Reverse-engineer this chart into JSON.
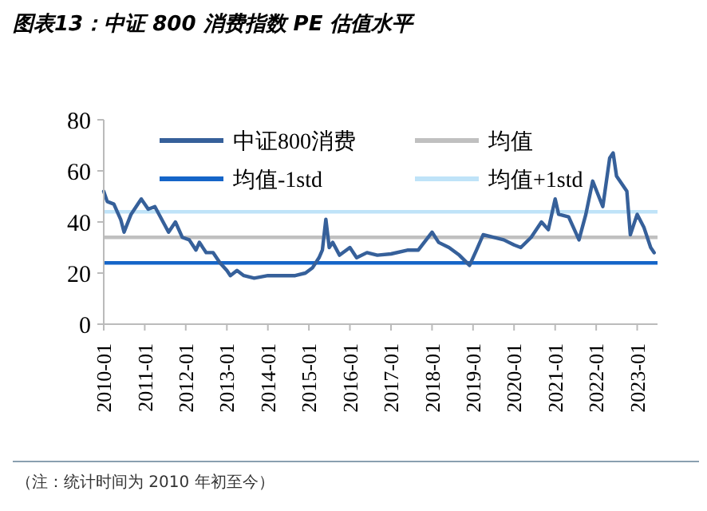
{
  "chart_data": {
    "type": "line",
    "title": "图表13：中证 800 消费指数 PE 估值水平",
    "annotations": [
      "（注：统计时间为 2010 年初至今）"
    ],
    "series": [
      {
        "name": "中证800消费",
        "color": "#36609a",
        "x": [
          "2010-01",
          "2010-02",
          "2010-04",
          "2010-06",
          "2010-07",
          "2010-09",
          "2010-11",
          "2010-12",
          "2011-02",
          "2011-04",
          "2011-06",
          "2011-08",
          "2011-10",
          "2011-12",
          "2012-02",
          "2012-04",
          "2012-05",
          "2012-07",
          "2012-09",
          "2012-11",
          "2013-01",
          "2013-02",
          "2013-04",
          "2013-06",
          "2013-09",
          "2014-01",
          "2014-06",
          "2014-09",
          "2014-12",
          "2015-02",
          "2015-04",
          "2015-05",
          "2015-06",
          "2015-07",
          "2015-08",
          "2015-10",
          "2016-01",
          "2016-03",
          "2016-06",
          "2016-09",
          "2017-01",
          "2017-06",
          "2017-09",
          "2018-01",
          "2018-03",
          "2018-06",
          "2018-09",
          "2018-12",
          "2019-02",
          "2019-04",
          "2019-07",
          "2019-10",
          "2020-01",
          "2020-03",
          "2020-06",
          "2020-09",
          "2020-11",
          "2021-01",
          "2021-02",
          "2021-05",
          "2021-08",
          "2021-10",
          "2021-12",
          "2022-03",
          "2022-05",
          "2022-06",
          "2022-07",
          "2022-10",
          "2022-11",
          "2023-01",
          "2023-03",
          "2023-05",
          "2023-06"
        ],
        "values": [
          52,
          48,
          47,
          41,
          36,
          43,
          47,
          49,
          45,
          46,
          41,
          36,
          40,
          34,
          33,
          29,
          32,
          28,
          28,
          24,
          21,
          19,
          21,
          19,
          18,
          19,
          19,
          19,
          20,
          22,
          26,
          29,
          41,
          30,
          32,
          27,
          30,
          26,
          28,
          27,
          27.5,
          29,
          29,
          36,
          32,
          30,
          27,
          23,
          29,
          35,
          34,
          33,
          31,
          30,
          34,
          40,
          37,
          49,
          43,
          42,
          33,
          43,
          56,
          46,
          65,
          67,
          58,
          52,
          35,
          43,
          38,
          30,
          28
        ]
      }
    ],
    "ref_lines": [
      {
        "axis": "y",
        "value": 34,
        "label": "均值",
        "color": "#c0c0c0"
      },
      {
        "axis": "y",
        "value": 24,
        "label": "均值-1std",
        "color": "#1565c8"
      },
      {
        "axis": "y",
        "value": 44,
        "label": "均值+1std",
        "color": "#bfe3f8"
      }
    ],
    "xlim": [
      "2010-01",
      "2023-07"
    ],
    "xticks": [
      "2010-01",
      "2011-01",
      "2012-01",
      "2013-01",
      "2014-01",
      "2015-01",
      "2016-01",
      "2017-01",
      "2018-01",
      "2019-01",
      "2020-01",
      "2021-01",
      "2022-01",
      "2023-01"
    ],
    "ylim": [
      0,
      80
    ],
    "yticks": [
      0,
      20,
      40,
      60,
      80
    ],
    "grid": false,
    "legend": "top",
    "marker": "none",
    "line_style": "solid"
  }
}
